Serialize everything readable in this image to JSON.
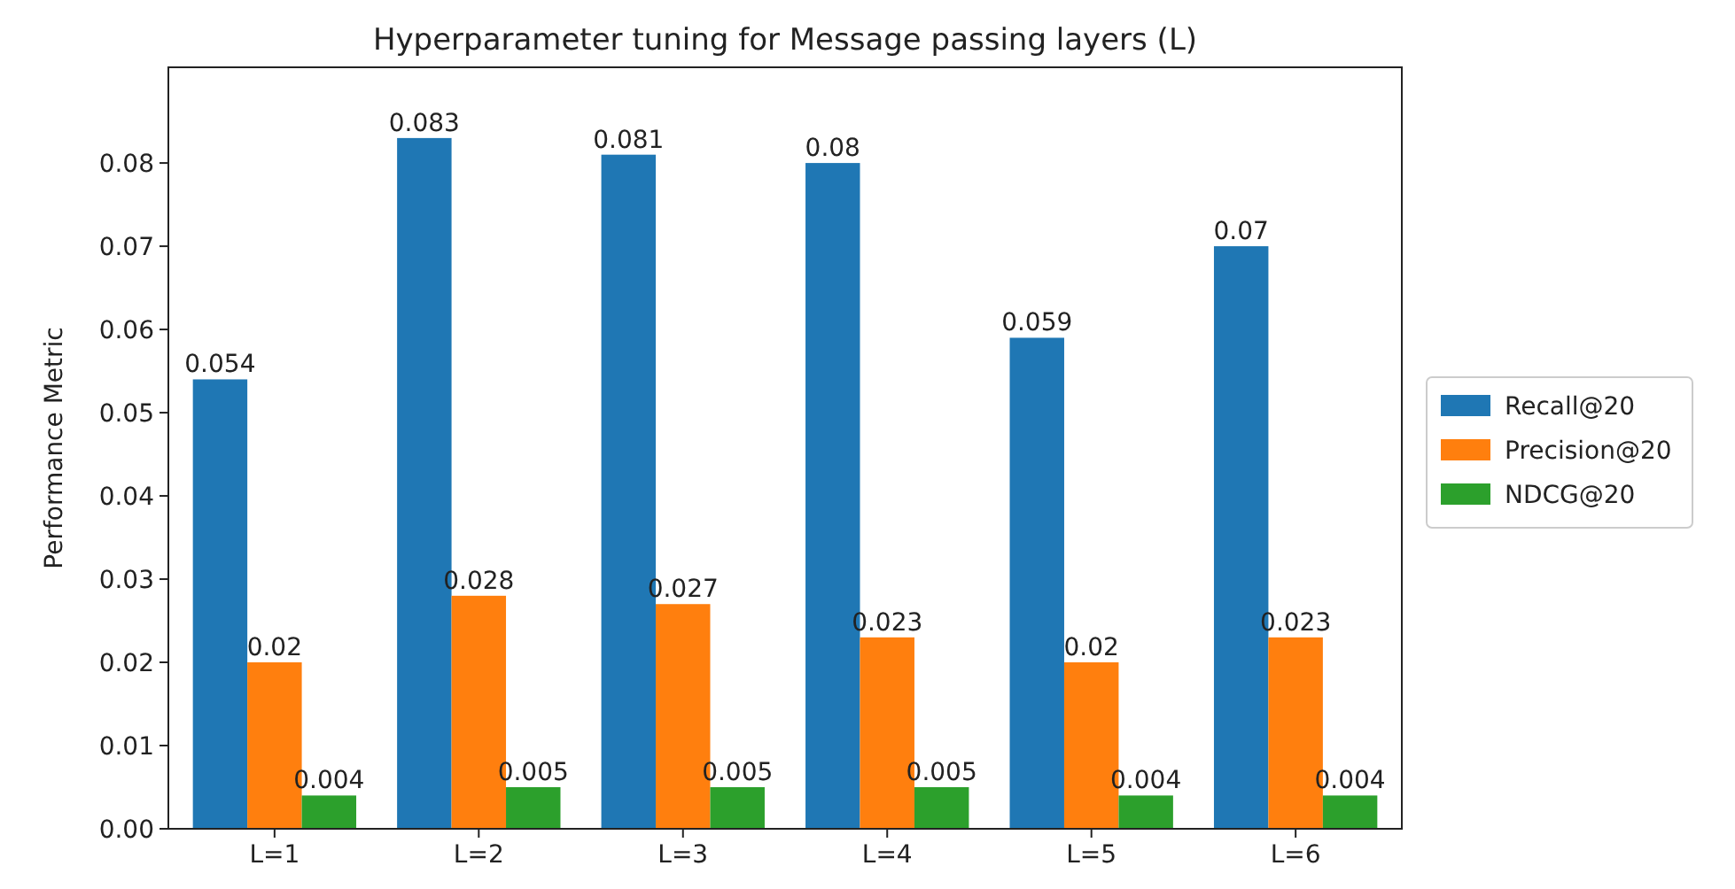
{
  "chart_data": {
    "type": "bar",
    "title": "Hyperparameter tuning for Message passing layers (L)",
    "ylabel": "Performance Metric",
    "categories": [
      "L=1",
      "L=2",
      "L=3",
      "L=4",
      "L=5",
      "L=6"
    ],
    "series": [
      {
        "name": "Recall@20",
        "color": "#1f77b4",
        "values": [
          0.054,
          0.083,
          0.081,
          0.08,
          0.059,
          0.07
        ]
      },
      {
        "name": "Precision@20",
        "color": "#ff7f0e",
        "values": [
          0.02,
          0.028,
          0.027,
          0.023,
          0.02,
          0.023
        ]
      },
      {
        "name": "NDCG@20",
        "color": "#2ca02c",
        "values": [
          0.004,
          0.005,
          0.005,
          0.005,
          0.004,
          0.004
        ]
      }
    ],
    "ylim": [
      0,
      0.0915
    ],
    "yticks": [
      {
        "value": 0,
        "label": "0.00"
      },
      {
        "value": 0.01,
        "label": "0.01"
      },
      {
        "value": 0.02,
        "label": "0.02"
      },
      {
        "value": 0.03,
        "label": "0.03"
      },
      {
        "value": 0.04,
        "label": "0.04"
      },
      {
        "value": 0.05,
        "label": "0.05"
      },
      {
        "value": 0.06,
        "label": "0.06"
      },
      {
        "value": 0.07,
        "label": "0.07"
      },
      {
        "value": 0.08,
        "label": "0.08"
      }
    ],
    "data_labels": true,
    "legend": "right",
    "grid": false
  }
}
